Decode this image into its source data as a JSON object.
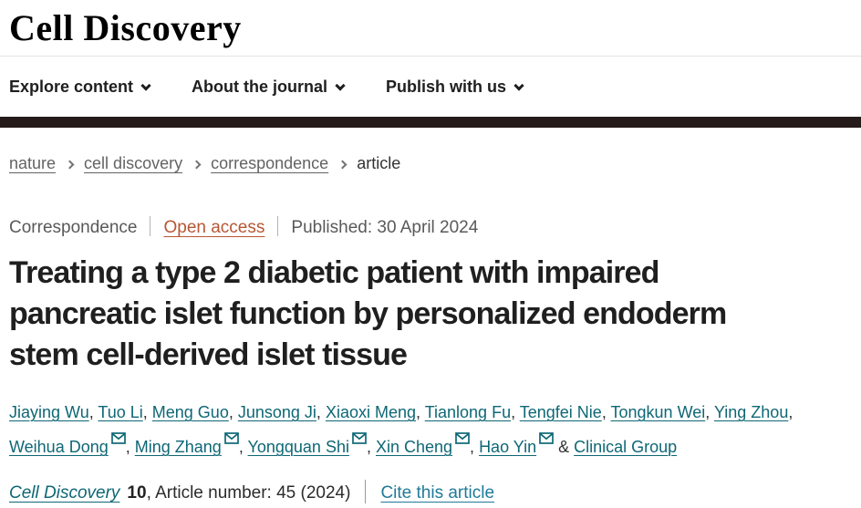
{
  "brand": {
    "logo": "Cell Discovery"
  },
  "nav": {
    "items": [
      {
        "label": "Explore content"
      },
      {
        "label": "About the journal"
      },
      {
        "label": "Publish with us"
      }
    ]
  },
  "breadcrumb": {
    "items": [
      {
        "label": "nature",
        "is_link": true
      },
      {
        "label": "cell discovery",
        "is_link": true
      },
      {
        "label": "correspondence",
        "is_link": true
      },
      {
        "label": "article",
        "is_link": false
      }
    ]
  },
  "article": {
    "type_label": "Correspondence",
    "access_label": "Open access",
    "published_label": "Published: 30 April 2024",
    "title": "Treating a type 2 diabetic patient with impaired pancreatic islet function by personalized endoderm stem cell-derived islet tissue",
    "title_lines": [
      "Treating a type 2 diabetic patient with impaired",
      "pancreatic islet function by personalized endoderm",
      "stem cell-derived islet tissue"
    ],
    "authors": [
      {
        "name": "Jiaying Wu",
        "email": false
      },
      {
        "name": "Tuo Li",
        "email": false
      },
      {
        "name": "Meng Guo",
        "email": false
      },
      {
        "name": "Junsong Ji",
        "email": false
      },
      {
        "name": "Xiaoxi Meng",
        "email": false
      },
      {
        "name": "Tianlong Fu",
        "email": false
      },
      {
        "name": "Tengfei Nie",
        "email": false
      },
      {
        "name": "Tongkun Wei",
        "email": false
      },
      {
        "name": "Ying Zhou",
        "email": false
      },
      {
        "name": "Weihua Dong",
        "email": true
      },
      {
        "name": "Ming Zhang",
        "email": true
      },
      {
        "name": "Yongquan Shi",
        "email": true
      },
      {
        "name": "Xin Cheng",
        "email": true
      },
      {
        "name": "Hao Yin",
        "email": true
      },
      {
        "name": "Clinical Group",
        "email": false
      }
    ],
    "author_separator": ", ",
    "authors_conjunction": " & ",
    "journal": {
      "name": "Cell Discovery",
      "volume": "10",
      "article_number_text": ", Article number: 45 (2024)",
      "cite_label": "Cite this article"
    }
  },
  "colors": {
    "link_teal": "#0e6775",
    "cite_teal": "#1f7a99",
    "open_access_orange": "#b85633",
    "dark_bar": "#241b1a",
    "breadcrumb_gray": "#636363",
    "title_dark": "#1f1f1f"
  }
}
